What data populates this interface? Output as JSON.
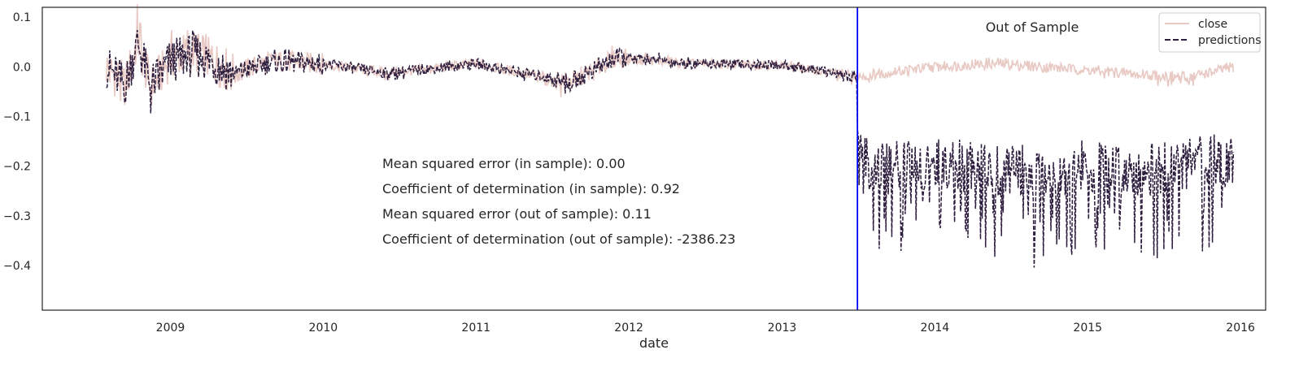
{
  "chart_data": {
    "type": "line",
    "xlabel": "date",
    "ylabel": "",
    "x_axis": "date",
    "xlim": [
      "2008-03-01",
      "2016-03-01"
    ],
    "ylim": [
      -0.49,
      0.12
    ],
    "x_ticks": [
      "2009",
      "2010",
      "2011",
      "2012",
      "2013",
      "2014",
      "2015",
      "2016"
    ],
    "y_ticks": [
      0.1,
      0.0,
      -0.1,
      -0.2,
      -0.3,
      -0.4
    ],
    "y_tick_labels": [
      "0.1",
      "0.0",
      "−0.1",
      "−0.2",
      "−0.3",
      "−0.4"
    ],
    "grid": false,
    "legend": {
      "placement": "top-right",
      "entries": [
        "close",
        "predictions"
      ]
    },
    "split_line": {
      "date": "2013-06-30",
      "color": "#0000ff"
    },
    "out_of_sample_label": "Out of Sample",
    "annotations": [
      "Mean squared error (in sample): 0.00",
      "Coefficient of determination (in sample): 0.92",
      "Mean squared error (out of sample): 0.11",
      "Coefficient of determination (out of sample): -2386.23"
    ],
    "series": [
      {
        "name": "close",
        "color": "#e8c9c3",
        "style": "solid",
        "x": [
          "2008-08-01",
          "2008-09-15",
          "2008-10-15",
          "2008-11-15",
          "2009-01-01",
          "2009-03-01",
          "2009-06-01",
          "2009-09-01",
          "2010-01-01",
          "2010-06-01",
          "2011-01-01",
          "2011-08-15",
          "2011-12-01",
          "2012-06-01",
          "2013-01-01",
          "2013-06-28",
          "2014-01-01",
          "2014-06-01",
          "2015-01-01",
          "2015-08-25",
          "2015-12-15"
        ],
        "values": [
          0.0,
          -0.06,
          0.09,
          -0.07,
          0.03,
          0.05,
          -0.02,
          0.02,
          0.01,
          -0.02,
          0.01,
          -0.05,
          0.03,
          0.01,
          0.005,
          -0.03,
          0.0,
          0.01,
          -0.01,
          -0.035,
          0.0
        ]
      },
      {
        "name": "predictions",
        "color": "#2d1e3e",
        "style": "dashed",
        "x": [
          "2008-08-01",
          "2008-09-15",
          "2008-10-15",
          "2008-11-15",
          "2009-01-01",
          "2009-03-01",
          "2009-06-01",
          "2009-09-01",
          "2010-01-01",
          "2010-06-01",
          "2011-01-01",
          "2011-08-15",
          "2011-12-01",
          "2012-06-01",
          "2013-01-01",
          "2013-06-28",
          "2013-07-01",
          "2013-09-01",
          "2014-01-01",
          "2014-06-01",
          "2014-09-01",
          "2015-01-01",
          "2015-06-01",
          "2015-11-15",
          "2015-12-15"
        ],
        "values": [
          0.0,
          -0.06,
          0.08,
          -0.06,
          0.02,
          0.04,
          -0.02,
          0.015,
          0.01,
          -0.02,
          0.01,
          -0.05,
          0.03,
          0.01,
          0.005,
          -0.03,
          -0.3,
          -0.34,
          -0.32,
          -0.34,
          -0.35,
          -0.33,
          -0.34,
          -0.31,
          -0.3
        ]
      }
    ]
  }
}
